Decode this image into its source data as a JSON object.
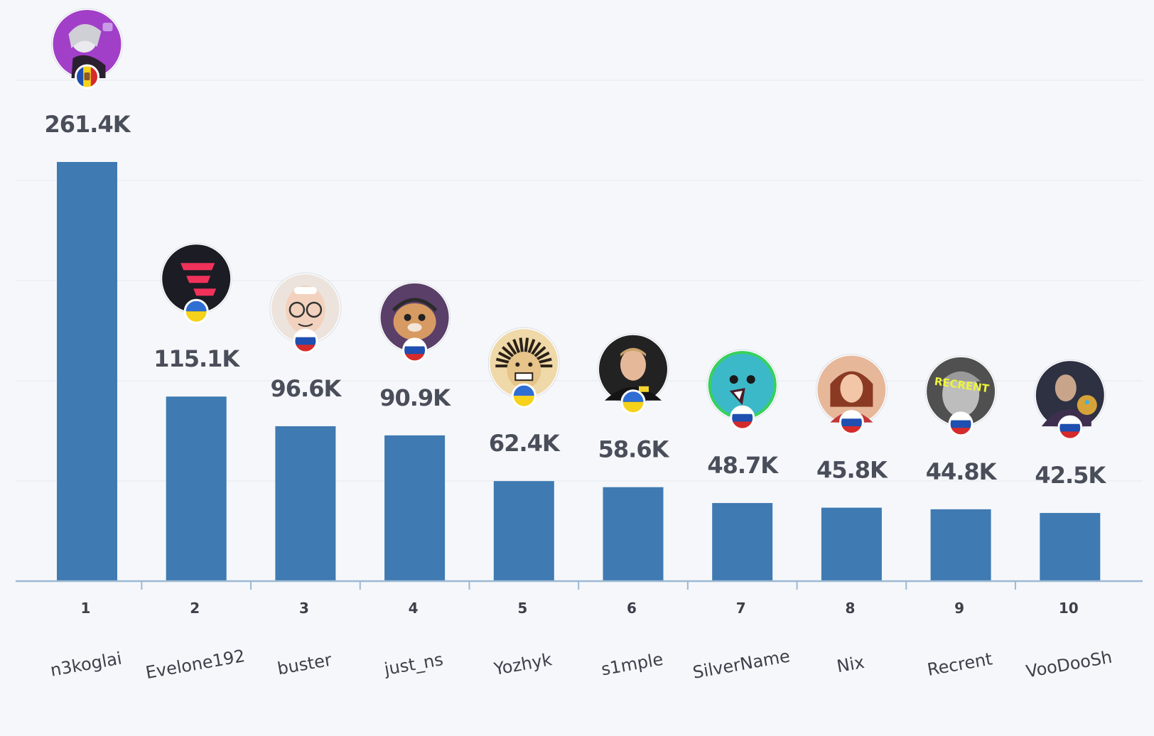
{
  "chart_data": {
    "type": "bar",
    "title": "",
    "xlabel": "",
    "ylabel": "",
    "grid": true,
    "ylim": [
      0,
      261.4
    ],
    "unit_suffix": "K",
    "categories": [
      "1",
      "2",
      "3",
      "4",
      "5",
      "6",
      "7",
      "8",
      "9",
      "10"
    ],
    "names": [
      "n3koglai",
      "Evelone192",
      "buster",
      "just_ns",
      "Yozhyk",
      "s1mple",
      "SilverName",
      "Nix",
      "Recrent",
      "VooDooSh"
    ],
    "values": [
      261.4,
      115.1,
      96.6,
      90.9,
      62.4,
      58.6,
      48.7,
      45.8,
      44.8,
      42.5
    ],
    "value_labels": [
      "261.4K",
      "115.1K",
      "96.6K",
      "90.9K",
      "62.4K",
      "58.6K",
      "48.7K",
      "45.8K",
      "44.8K",
      "42.5K"
    ],
    "countries": [
      "moldova",
      "ukraine",
      "russia",
      "russia",
      "ukraine",
      "ukraine",
      "russia",
      "russia",
      "russia",
      "russia"
    ],
    "avatar_icons": [
      "anime-character-avatar-icon",
      "red-logo-avatar-icon",
      "glasses-man-avatar-icon",
      "hamster-avatar-icon",
      "hedgehog-avatar-icon",
      "player-photo-avatar-icon",
      "blue-blob-avatar-icon",
      "woman-avatar-icon",
      "statue-avatar-icon",
      "gauntlet-man-avatar-icon"
    ],
    "avatar_colors": [
      "#a23fc9",
      "#1c1c24",
      "#ece4dc",
      "#5a3f68",
      "#f0d9a8",
      "#222222",
      "#3bb9c9",
      "#e7b79a",
      "#505050",
      "#2d3142"
    ],
    "bar_color": "#3f7ab2",
    "axis_color": "#9db9d3",
    "flag_colors": {
      "ukraine": [
        "#2f6ed3",
        "#f7d21a"
      ],
      "russia": [
        "#ffffff",
        "#1f4fb0",
        "#d52b2b"
      ],
      "moldova": [
        "#1f4fb0",
        "#f7d21a",
        "#d52b2b"
      ]
    }
  }
}
